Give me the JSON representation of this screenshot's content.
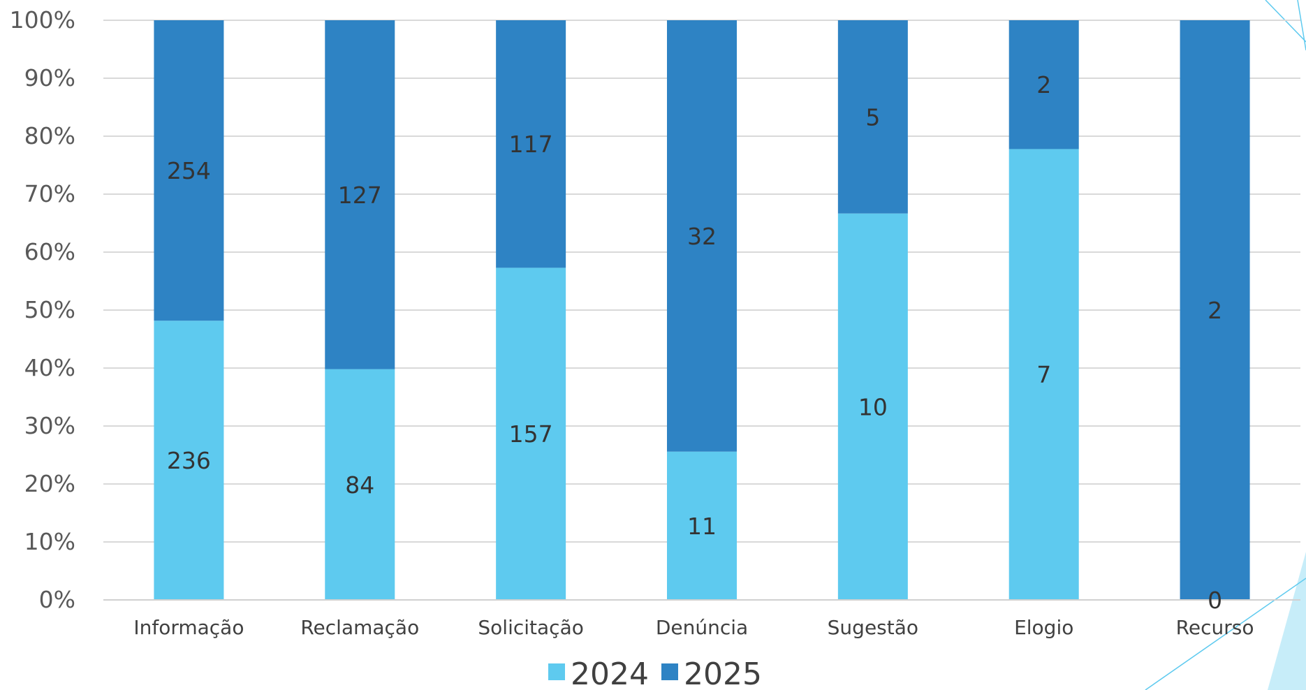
{
  "chart_data": {
    "type": "bar",
    "stacked": true,
    "normalized": true,
    "categories": [
      "Informação",
      "Reclamação",
      "Solicitação",
      "Denúncia",
      "Sugestão",
      "Elogio",
      "Recurso"
    ],
    "series": [
      {
        "name": "2024",
        "values": [
          236,
          84,
          157,
          11,
          10,
          7,
          0
        ],
        "color": "#5ECAEF"
      },
      {
        "name": "2025",
        "values": [
          254,
          127,
          117,
          32,
          5,
          2,
          2
        ],
        "color": "#2E83C4"
      }
    ],
    "y_ticks": [
      "0%",
      "10%",
      "20%",
      "30%",
      "40%",
      "50%",
      "60%",
      "70%",
      "80%",
      "90%",
      "100%"
    ],
    "ylim": [
      0,
      100
    ],
    "grid": true,
    "legend": {
      "position": "bottom",
      "entries": [
        "2024",
        "2025"
      ]
    },
    "title": "",
    "xlabel": "",
    "ylabel": ""
  },
  "colors": {
    "grid": "#D9D9D9",
    "axis": "#D0D0D0",
    "decoration": "#5ECAEF"
  }
}
